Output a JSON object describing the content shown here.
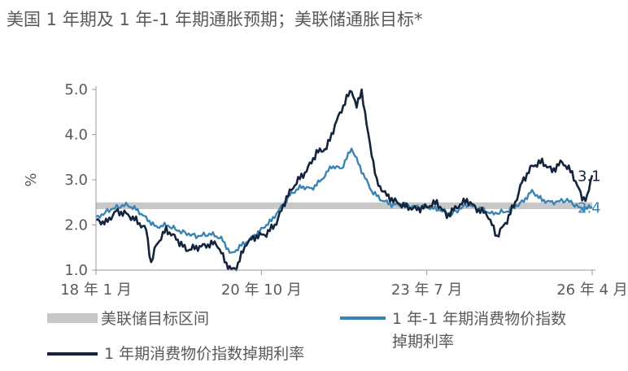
{
  "title": "美国 1 年期及 1 年-1 年期通胀预期；美联储通胀目标*",
  "chart_data": {
    "type": "line",
    "ylabel": "%",
    "xlabel": "",
    "ylim": [
      1.0,
      5.0
    ],
    "yticks": [
      "1.0",
      "2.0",
      "3.0",
      "4.0",
      "5.0"
    ],
    "xlim": [
      "2018-01",
      "2026-04"
    ],
    "xticks": [
      {
        "label": "18 年 1 月",
        "x": "2018-01"
      },
      {
        "label": "20 年 10 月",
        "x": "2020-10"
      },
      {
        "label": "23 年 7 月",
        "x": "2023-07"
      },
      {
        "label": "26 年 4 月",
        "x": "2026-04"
      }
    ],
    "band": {
      "name": "美联储目标区间",
      "low": 2.35,
      "high": 2.5,
      "color": "#c8c8c8"
    },
    "series": [
      {
        "name": "1 年期消费物价指数掉期利率",
        "color": "#14243c",
        "end_label": "3.1",
        "points": [
          [
            "2018-01",
            2.1
          ],
          [
            "2018-03",
            2.05
          ],
          [
            "2018-05",
            2.3
          ],
          [
            "2018-07",
            2.25
          ],
          [
            "2018-09",
            2.1
          ],
          [
            "2018-11",
            1.9
          ],
          [
            "2018-12",
            1.15
          ],
          [
            "2019-01",
            1.55
          ],
          [
            "2019-03",
            1.9
          ],
          [
            "2019-05",
            1.7
          ],
          [
            "2019-07",
            1.45
          ],
          [
            "2019-09",
            1.5
          ],
          [
            "2019-11",
            1.55
          ],
          [
            "2020-01",
            1.6
          ],
          [
            "2020-03",
            1.15
          ],
          [
            "2020-04",
            1.0
          ],
          [
            "2020-05",
            1.05
          ],
          [
            "2020-07",
            1.6
          ],
          [
            "2020-09",
            1.75
          ],
          [
            "2020-11",
            1.8
          ],
          [
            "2021-01",
            2.05
          ],
          [
            "2021-03",
            2.6
          ],
          [
            "2021-05",
            2.95
          ],
          [
            "2021-07",
            3.2
          ],
          [
            "2021-09",
            3.6
          ],
          [
            "2021-11",
            3.7
          ],
          [
            "2021-12",
            4.0
          ],
          [
            "2022-01",
            4.3
          ],
          [
            "2022-03",
            4.8
          ],
          [
            "2022-04",
            5.0
          ],
          [
            "2022-05",
            4.6
          ],
          [
            "2022-06",
            5.0
          ],
          [
            "2022-07",
            4.2
          ],
          [
            "2022-08",
            3.6
          ],
          [
            "2022-09",
            2.95
          ],
          [
            "2022-11",
            2.65
          ],
          [
            "2023-01",
            2.5
          ],
          [
            "2023-03",
            2.4
          ],
          [
            "2023-05",
            2.35
          ],
          [
            "2023-07",
            2.4
          ],
          [
            "2023-09",
            2.5
          ],
          [
            "2023-11",
            2.2
          ],
          [
            "2024-01",
            2.4
          ],
          [
            "2024-03",
            2.55
          ],
          [
            "2024-05",
            2.35
          ],
          [
            "2024-07",
            2.25
          ],
          [
            "2024-09",
            1.75
          ],
          [
            "2024-11",
            2.1
          ],
          [
            "2025-01",
            2.6
          ],
          [
            "2025-02",
            2.95
          ],
          [
            "2025-04",
            3.3
          ],
          [
            "2025-06",
            3.4
          ],
          [
            "2025-08",
            3.2
          ],
          [
            "2025-10",
            3.4
          ],
          [
            "2025-12",
            3.15
          ],
          [
            "2026-02",
            2.6
          ],
          [
            "2026-03",
            2.6
          ],
          [
            "2026-04",
            3.1
          ]
        ]
      },
      {
        "name": "1 年-1 年期消费物价指数掉期利率",
        "color": "#3a84b4",
        "end_label": "2.4",
        "points": [
          [
            "2018-01",
            2.15
          ],
          [
            "2018-04",
            2.35
          ],
          [
            "2018-07",
            2.45
          ],
          [
            "2018-09",
            2.35
          ],
          [
            "2018-11",
            2.15
          ],
          [
            "2019-01",
            1.95
          ],
          [
            "2019-03",
            2.0
          ],
          [
            "2019-06",
            1.85
          ],
          [
            "2019-09",
            1.75
          ],
          [
            "2019-12",
            1.8
          ],
          [
            "2020-02",
            1.7
          ],
          [
            "2020-04",
            1.35
          ],
          [
            "2020-06",
            1.55
          ],
          [
            "2020-08",
            1.7
          ],
          [
            "2020-10",
            1.9
          ],
          [
            "2020-12",
            2.1
          ],
          [
            "2021-02",
            2.4
          ],
          [
            "2021-04",
            2.7
          ],
          [
            "2021-06",
            2.85
          ],
          [
            "2021-08",
            2.8
          ],
          [
            "2021-10",
            3.0
          ],
          [
            "2021-12",
            3.3
          ],
          [
            "2022-02",
            3.25
          ],
          [
            "2022-04",
            3.7
          ],
          [
            "2022-06",
            3.2
          ],
          [
            "2022-08",
            2.75
          ],
          [
            "2022-10",
            2.55
          ],
          [
            "2022-12",
            2.45
          ],
          [
            "2023-02",
            2.45
          ],
          [
            "2023-04",
            2.4
          ],
          [
            "2023-07",
            2.4
          ],
          [
            "2023-09",
            2.35
          ],
          [
            "2023-12",
            2.25
          ],
          [
            "2024-03",
            2.45
          ],
          [
            "2024-06",
            2.35
          ],
          [
            "2024-08",
            2.25
          ],
          [
            "2024-11",
            2.3
          ],
          [
            "2025-02",
            2.5
          ],
          [
            "2025-04",
            2.75
          ],
          [
            "2025-06",
            2.55
          ],
          [
            "2025-08",
            2.5
          ],
          [
            "2025-11",
            2.55
          ],
          [
            "2026-02",
            2.35
          ],
          [
            "2026-04",
            2.4
          ]
        ]
      }
    ],
    "legend": [
      {
        "label": "美联储目标区间"
      },
      {
        "label_line1": "1 年-1 年期消费物价指数",
        "label_line2": "掉期利率"
      },
      {
        "label": "1 年期消费物价指数掉期利率"
      }
    ]
  }
}
